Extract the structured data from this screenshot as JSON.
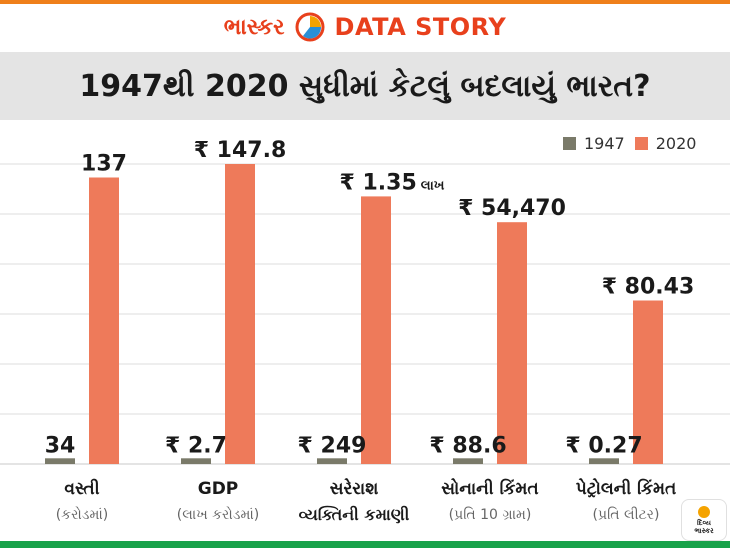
{
  "brand": {
    "name": "ભાસ્કર",
    "tag": "DATA STORY"
  },
  "headline": "1947થી 2020 સુધીમાં કેટલું બદલાયું ભારત?",
  "colors": {
    "series_1947": "#7a7a69",
    "series_2020": "#ee7a5a",
    "grid": "#dcdcdc",
    "brand": "#e8401c",
    "top_stripe": "#ef7f1a",
    "bottom_stripe": "#18a24a",
    "headline_bg": "#e4e4e4"
  },
  "chart_data": {
    "type": "bar",
    "series": [
      {
        "name": "1947",
        "values": [
          34,
          2.7,
          249,
          88.6,
          0.27
        ],
        "labels": [
          "34",
          "₹ 2.7",
          "₹ 249",
          "₹ 88.6",
          "₹ 0.27"
        ]
      },
      {
        "name": "2020",
        "values": [
          137,
          147.8,
          1.35,
          54470,
          80.43
        ],
        "labels": [
          "137",
          "₹ 147.8",
          "₹ 1.35",
          "₹ 54,470",
          "₹ 80.43"
        ]
      }
    ],
    "value_suffix_2020": [
      "",
      "",
      "લાખ",
      "",
      ""
    ],
    "categories": [
      {
        "label": "વસ્તી",
        "sub": "(કરોડમાં)"
      },
      {
        "label": "GDP",
        "sub": "(લાખ કરોડમાં)"
      },
      {
        "label": "સરેરાશ",
        "sub": "વ્યક્તિની કમાણી"
      },
      {
        "label": "સોનાની કિંમત",
        "sub": "(પ્રતિ 10 ગ્રામ)"
      },
      {
        "label": "પેટ્રોલની કિંમત",
        "sub": "(પ્રતિ લીટર)"
      }
    ],
    "shown_level_1947": [
      0.019,
      0.019,
      0.019,
      0.019,
      0.019
    ],
    "shown_level_2020": [
      0.955,
      1.0,
      0.892,
      0.806,
      0.545
    ],
    "grid": true,
    "legend_position": "top-right"
  },
  "badge": {
    "line1": "દિવ્ય",
    "line2": "ભાસ્કર"
  }
}
